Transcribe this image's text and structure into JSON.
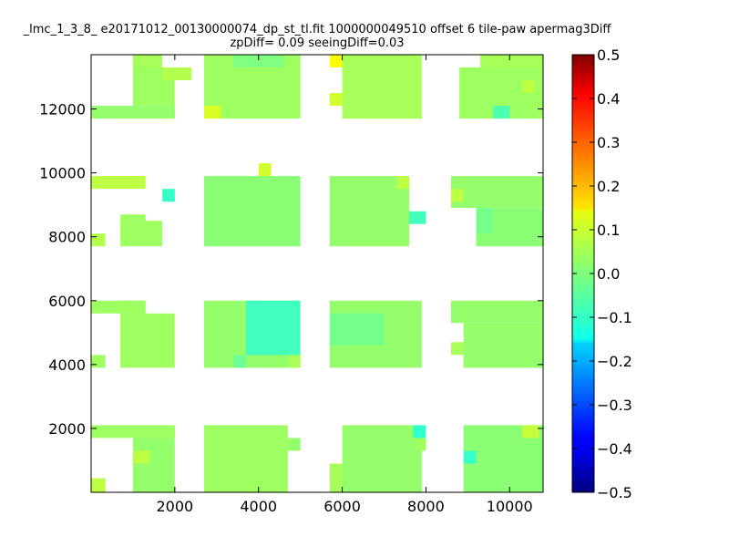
{
  "chart_data": {
    "type": "heatmap",
    "title_line1": "_lmc_1_3_8_ e20171012_00130000074_dp_st_tl.fit 1000000049510 offset 6 tile-paw apermag3Diff",
    "title_line2": "zpDiff= 0.09 seeingDiff=0.03",
    "xlabel": "",
    "ylabel": "",
    "xlim": [
      0,
      10800
    ],
    "ylim": [
      0,
      13700
    ],
    "x_ticks": [
      2000,
      4000,
      6000,
      8000,
      10000
    ],
    "x_tick_labels": [
      "2000",
      "4000",
      "6000",
      "8000",
      "10000"
    ],
    "y_ticks": [
      2000,
      4000,
      6000,
      8000,
      10000,
      12000
    ],
    "y_tick_labels": [
      "2000",
      "4000",
      "6000",
      "8000",
      "10000",
      "12000"
    ],
    "colorbar": {
      "colormap": "jet",
      "vmin": -0.5,
      "vmax": 0.5,
      "ticks": [
        0.5,
        0.4,
        0.3,
        0.2,
        0.1,
        0.0,
        -0.1,
        -0.2,
        -0.3,
        -0.4,
        -0.5
      ],
      "tick_labels": [
        "0.5",
        "0.4",
        "0.3",
        "0.2",
        "0.1",
        "0.0",
        "−0.1",
        "−0.2",
        "−0.3",
        "−0.4",
        "−0.5"
      ]
    },
    "cells": [
      {
        "x0": 0,
        "x1": 340,
        "y0": 0,
        "y1": 440,
        "v": 0.06
      },
      {
        "x0": 1000,
        "x1": 2000,
        "y0": 0,
        "y1": 1700,
        "v": 0.02
      },
      {
        "x0": 1000,
        "x1": 1400,
        "y0": 900,
        "y1": 1300,
        "v": 0.06
      },
      {
        "x0": 0,
        "x1": 2000,
        "y0": 1700,
        "y1": 2100,
        "v": 0.03
      },
      {
        "x0": 2700,
        "x1": 4700,
        "y0": 0,
        "y1": 2100,
        "v": 0.03
      },
      {
        "x0": 4700,
        "x1": 5000,
        "y0": 1300,
        "y1": 1700,
        "v": 0.02
      },
      {
        "x0": 5700,
        "x1": 6300,
        "y0": 0,
        "y1": 900,
        "v": 0.04
      },
      {
        "x0": 6000,
        "x1": 7900,
        "y0": 0,
        "y1": 2100,
        "v": 0.02
      },
      {
        "x0": 7700,
        "x1": 8000,
        "y0": 1300,
        "y1": 1700,
        "v": 0.03
      },
      {
        "x0": 7700,
        "x1": 8000,
        "y0": 1700,
        "y1": 2100,
        "v": -0.08
      },
      {
        "x0": 8900,
        "x1": 10800,
        "y0": 0,
        "y1": 2100,
        "v": 0.01
      },
      {
        "x0": 8900,
        "x1": 9200,
        "y0": 900,
        "y1": 1300,
        "v": -0.07
      },
      {
        "x0": 10300,
        "x1": 10700,
        "y0": 1700,
        "y1": 2100,
        "v": 0.07
      },
      {
        "x0": 0,
        "x1": 340,
        "y0": 3900,
        "y1": 4300,
        "v": 0.03
      },
      {
        "x0": 0,
        "x1": 1300,
        "y0": 5600,
        "y1": 6000,
        "v": 0.03
      },
      {
        "x0": 700,
        "x1": 2000,
        "y0": 3900,
        "y1": 5600,
        "v": 0.03
      },
      {
        "x0": 700,
        "x1": 1300,
        "y0": 5600,
        "y1": 6000,
        "v": 0.03
      },
      {
        "x0": 2700,
        "x1": 5000,
        "y0": 3900,
        "y1": 6000,
        "v": 0.02
      },
      {
        "x0": 3700,
        "x1": 5000,
        "y0": 4300,
        "y1": 6000,
        "v": -0.06
      },
      {
        "x0": 3400,
        "x1": 3700,
        "y0": 3900,
        "y1": 4300,
        "v": -0.02
      },
      {
        "x0": 4700,
        "x1": 5000,
        "y0": 3900,
        "y1": 4300,
        "v": 0.04
      },
      {
        "x0": 5700,
        "x1": 7900,
        "y0": 3900,
        "y1": 6000,
        "v": 0.02
      },
      {
        "x0": 5700,
        "x1": 7000,
        "y0": 4600,
        "y1": 5600,
        "v": -0.01
      },
      {
        "x0": 8600,
        "x1": 8900,
        "y0": 4300,
        "y1": 4700,
        "v": 0.04
      },
      {
        "x0": 8600,
        "x1": 10800,
        "y0": 5300,
        "y1": 6000,
        "v": 0.02
      },
      {
        "x0": 8900,
        "x1": 10800,
        "y0": 3900,
        "y1": 5300,
        "v": 0.02
      },
      {
        "x0": 0,
        "x1": 340,
        "y0": 7700,
        "y1": 8100,
        "v": 0.05
      },
      {
        "x0": 700,
        "x1": 1700,
        "y0": 7700,
        "y1": 8500,
        "v": 0.03
      },
      {
        "x0": 700,
        "x1": 1300,
        "y0": 8500,
        "y1": 8700,
        "v": 0.03
      },
      {
        "x0": 1700,
        "x1": 2000,
        "y0": 9100,
        "y1": 9500,
        "v": -0.07
      },
      {
        "x0": 0,
        "x1": 1300,
        "y0": 9500,
        "y1": 9900,
        "v": 0.06
      },
      {
        "x0": 2700,
        "x1": 5000,
        "y0": 7700,
        "y1": 9900,
        "v": 0.01
      },
      {
        "x0": 4000,
        "x1": 4300,
        "y0": 9900,
        "y1": 10300,
        "v": 0.08
      },
      {
        "x0": 5700,
        "x1": 7600,
        "y0": 7700,
        "y1": 9900,
        "v": 0.02
      },
      {
        "x0": 7300,
        "x1": 7600,
        "y0": 9500,
        "y1": 9900,
        "v": 0.06
      },
      {
        "x0": 7600,
        "x1": 8000,
        "y0": 8400,
        "y1": 8800,
        "v": -0.06
      },
      {
        "x0": 8600,
        "x1": 10800,
        "y0": 8900,
        "y1": 9900,
        "v": 0.02
      },
      {
        "x0": 8600,
        "x1": 8900,
        "y0": 9100,
        "y1": 9500,
        "v": 0.06
      },
      {
        "x0": 9200,
        "x1": 10800,
        "y0": 7700,
        "y1": 8900,
        "v": 0.01
      },
      {
        "x0": 9200,
        "x1": 9600,
        "y0": 8100,
        "y1": 8900,
        "v": -0.01
      },
      {
        "x0": 0,
        "x1": 2000,
        "y0": 11700,
        "y1": 12100,
        "v": 0.02
      },
      {
        "x0": 1000,
        "x1": 2000,
        "y0": 12100,
        "y1": 13300,
        "v": 0.03
      },
      {
        "x0": 1000,
        "x1": 1700,
        "y0": 13300,
        "y1": 13700,
        "v": 0.04
      },
      {
        "x0": 1700,
        "x1": 2400,
        "y0": 12900,
        "y1": 13300,
        "v": 0.05
      },
      {
        "x0": 2700,
        "x1": 5000,
        "y0": 11700,
        "y1": 13700,
        "v": 0.03
      },
      {
        "x0": 2700,
        "x1": 3100,
        "y0": 11700,
        "y1": 12100,
        "v": 0.09
      },
      {
        "x0": 3400,
        "x1": 4600,
        "y0": 13300,
        "y1": 13700,
        "v": 0.0
      },
      {
        "x0": 5700,
        "x1": 6000,
        "y0": 13300,
        "y1": 13700,
        "v": 0.12
      },
      {
        "x0": 6000,
        "x1": 7900,
        "y0": 11700,
        "y1": 13700,
        "v": 0.04
      },
      {
        "x0": 5700,
        "x1": 6000,
        "y0": 12100,
        "y1": 12500,
        "v": 0.08
      },
      {
        "x0": 8800,
        "x1": 10800,
        "y0": 11700,
        "y1": 13300,
        "v": 0.03
      },
      {
        "x0": 9300,
        "x1": 10800,
        "y0": 13300,
        "y1": 13700,
        "v": 0.04
      },
      {
        "x0": 9600,
        "x1": 10000,
        "y0": 11700,
        "y1": 12100,
        "v": -0.05
      },
      {
        "x0": 10300,
        "x1": 10600,
        "y0": 12500,
        "y1": 12900,
        "v": 0.06
      }
    ]
  }
}
